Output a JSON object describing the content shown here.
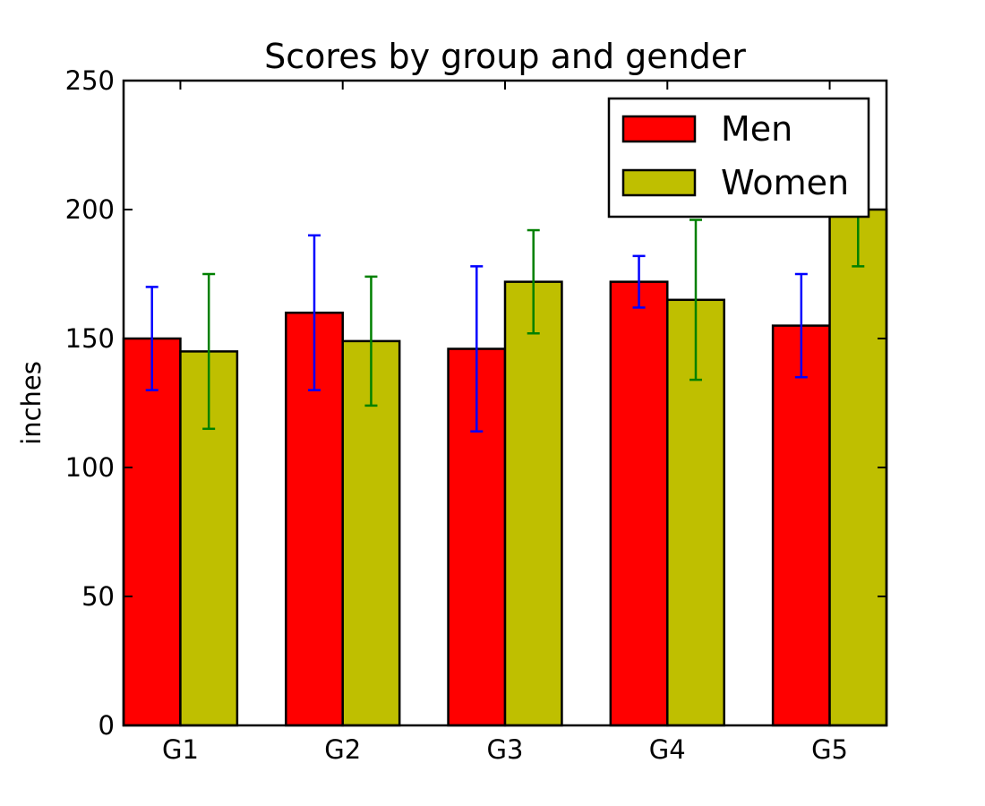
{
  "chart_data": {
    "type": "bar",
    "title": "Scores by group and gender",
    "xlabel": "",
    "ylabel": "inches",
    "categories": [
      "G1",
      "G2",
      "G3",
      "G4",
      "G5"
    ],
    "ylim": [
      0,
      250
    ],
    "yticks": [
      0,
      50,
      100,
      150,
      200,
      250
    ],
    "grid": false,
    "legend_position": "top-right",
    "series": [
      {
        "name": "Men",
        "values": [
          150,
          160,
          146,
          172,
          155
        ],
        "errors": [
          20,
          30,
          32,
          10,
          20
        ],
        "color": "#ff0000",
        "error_color": "#0000ff"
      },
      {
        "name": "Women",
        "values": [
          145,
          149,
          172,
          165,
          200
        ],
        "errors": [
          30,
          25,
          20,
          31,
          22
        ],
        "color": "#bfbf00",
        "error_color": "#008000"
      }
    ]
  }
}
